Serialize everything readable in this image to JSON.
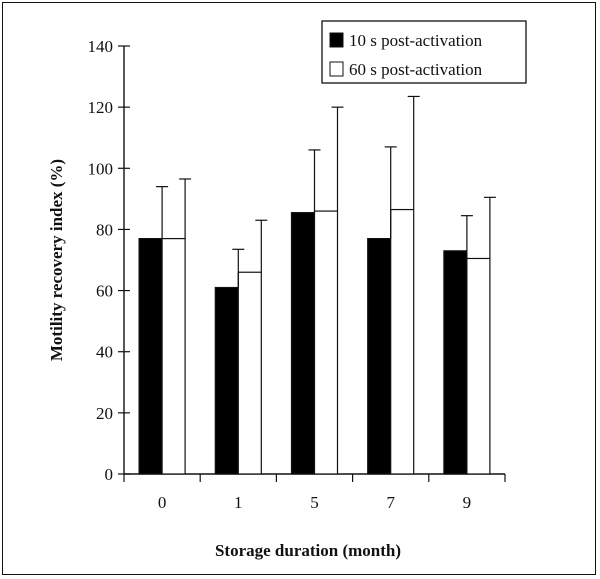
{
  "chart_data": {
    "type": "bar",
    "title": "",
    "xlabel": "Storage duration (month)",
    "ylabel": "Motility recovery index (%)",
    "ylim": [
      0,
      140
    ],
    "yticks": [
      0,
      20,
      40,
      60,
      80,
      100,
      120,
      140
    ],
    "categories": [
      "0",
      "1",
      "5",
      "7",
      "9"
    ],
    "series": [
      {
        "name": "10 s post-activation",
        "color": "#000000",
        "values": [
          77,
          61,
          85.5,
          77,
          73
        ],
        "errors": [
          17,
          12.5,
          20.5,
          30,
          11.5
        ]
      },
      {
        "name": "60 s post-activation",
        "color": "#ffffff",
        "values": [
          77,
          66,
          86,
          86.5,
          70.5
        ],
        "errors": [
          19.5,
          17,
          34,
          37,
          20
        ]
      }
    ],
    "legend": "top-right",
    "grid": false
  }
}
